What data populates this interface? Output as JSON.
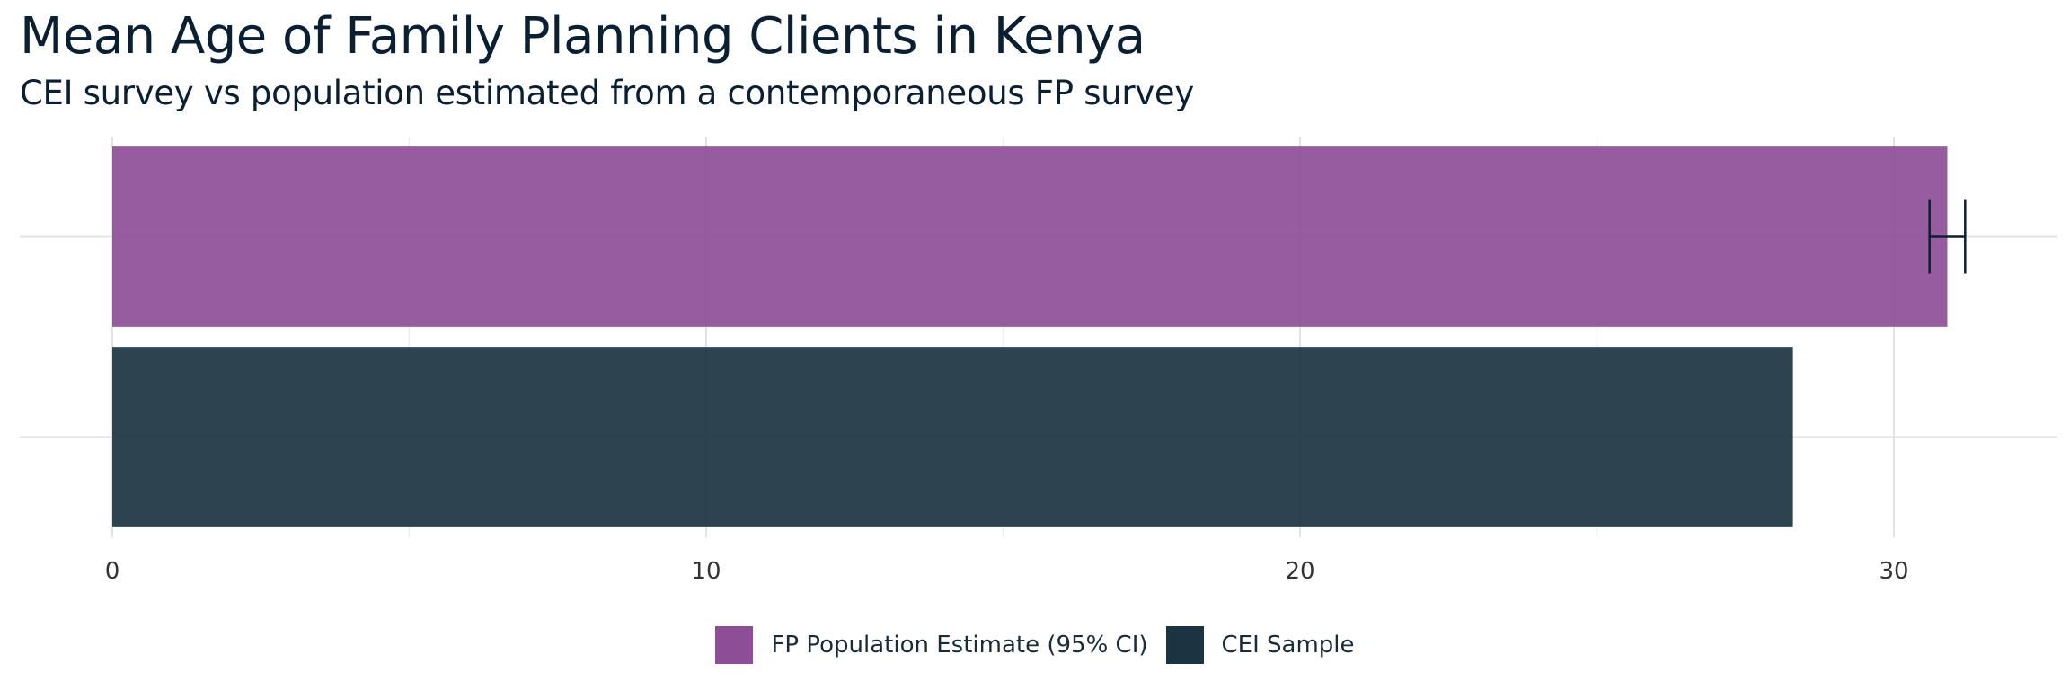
{
  "chart_data": {
    "type": "bar",
    "orientation": "horizontal",
    "title": "Mean Age of Family Planning Clients in Kenya",
    "subtitle": "CEI survey vs population estimated from a contemporaneous FP survey",
    "xlabel": "",
    "ylabel": "",
    "xlim": [
      0,
      32.5
    ],
    "x_ticks": [
      0,
      10,
      20,
      30
    ],
    "grid": true,
    "legend_position": "bottom",
    "series": [
      {
        "name": "FP Population Estimate (95% CI)",
        "value": 30.9,
        "ci": [
          30.6,
          31.2
        ],
        "color": "#8e4e97"
      },
      {
        "name": "CEI Sample",
        "value": 28.3,
        "color": "#1c3341"
      }
    ]
  }
}
